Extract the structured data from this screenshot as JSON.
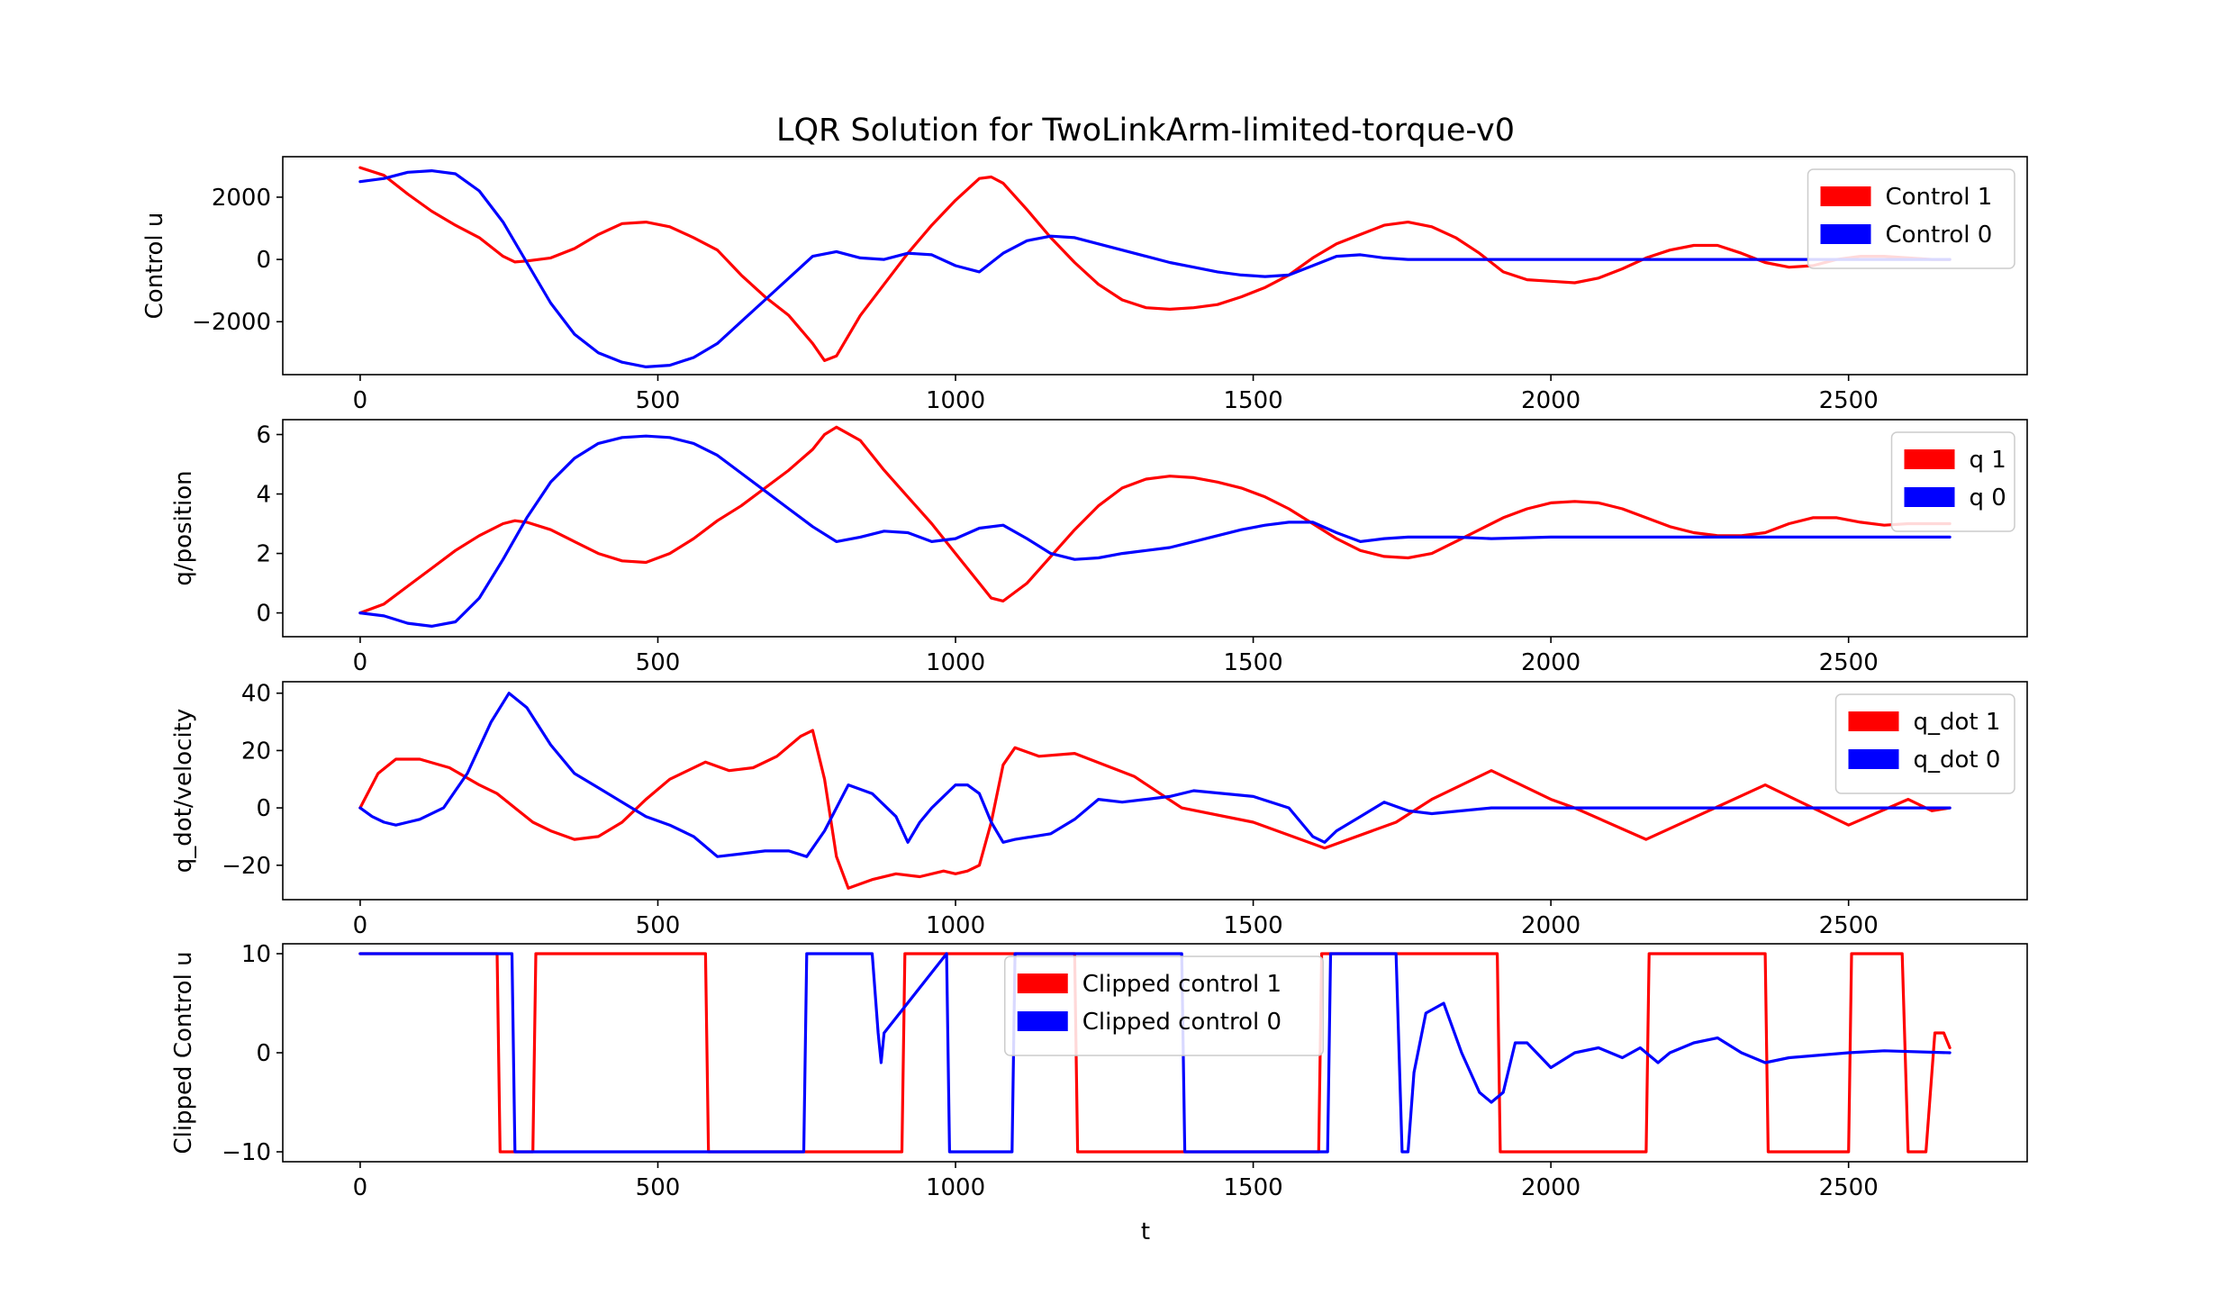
{
  "figure": {
    "title": "LQR Solution for TwoLinkArm-limited-torque-v0",
    "xlabel": "t"
  },
  "colors": {
    "series_1": "#ff0000",
    "series_0": "#0000ff"
  },
  "chart_data": [
    {
      "type": "line",
      "title": "LQR Solution for TwoLinkArm-limited-torque-v0",
      "ylabel": "Control u",
      "xlabel": "",
      "xlim": [
        -130,
        2800
      ],
      "ylim": [
        -3700,
        3300
      ],
      "xticks": [
        0,
        500,
        1000,
        1500,
        2000,
        2500
      ],
      "xtick_labels": [
        "0",
        "500",
        "1000",
        "1500",
        "2000",
        "2500"
      ],
      "yticks": [
        -2000,
        0,
        2000
      ],
      "ytick_labels": [
        "−2000",
        "0",
        "2000"
      ],
      "legend_position": "upper right",
      "series": [
        {
          "name": "Control 1",
          "color": "#ff0000",
          "x": [
            0,
            40,
            80,
            120,
            160,
            200,
            240,
            260,
            280,
            320,
            360,
            400,
            440,
            480,
            520,
            560,
            600,
            640,
            680,
            720,
            760,
            780,
            800,
            840,
            880,
            920,
            960,
            1000,
            1040,
            1060,
            1080,
            1120,
            1160,
            1200,
            1240,
            1280,
            1320,
            1360,
            1400,
            1440,
            1480,
            1520,
            1560,
            1600,
            1640,
            1680,
            1720,
            1760,
            1800,
            1840,
            1880,
            1920,
            1960,
            2000,
            2040,
            2080,
            2120,
            2160,
            2200,
            2240,
            2280,
            2320,
            2360,
            2400,
            2440,
            2480,
            2520,
            2560,
            2600,
            2640,
            2670
          ],
          "y": [
            2950,
            2700,
            2100,
            1550,
            1100,
            700,
            100,
            -80,
            -50,
            50,
            350,
            800,
            1150,
            1200,
            1050,
            700,
            300,
            -500,
            -1200,
            -1800,
            -2700,
            -3250,
            -3100,
            -1800,
            -800,
            200,
            1100,
            1900,
            2600,
            2650,
            2450,
            1600,
            700,
            -100,
            -800,
            -1300,
            -1550,
            -1600,
            -1550,
            -1450,
            -1200,
            -900,
            -500,
            50,
            500,
            800,
            1100,
            1200,
            1050,
            700,
            200,
            -400,
            -650,
            -700,
            -750,
            -600,
            -300,
            50,
            300,
            450,
            450,
            200,
            -100,
            -250,
            -200,
            0,
            100,
            100,
            50,
            0,
            0
          ]
        },
        {
          "name": "Control 0",
          "color": "#0000ff",
          "x": [
            0,
            40,
            80,
            120,
            160,
            200,
            240,
            280,
            320,
            360,
            400,
            440,
            480,
            520,
            560,
            600,
            640,
            680,
            720,
            760,
            800,
            840,
            880,
            920,
            960,
            1000,
            1040,
            1080,
            1120,
            1160,
            1200,
            1240,
            1280,
            1320,
            1360,
            1400,
            1440,
            1480,
            1520,
            1560,
            1600,
            1640,
            1680,
            1720,
            1760,
            1800,
            1900,
            2000,
            2200,
            2400,
            2670
          ],
          "y": [
            2500,
            2600,
            2800,
            2850,
            2750,
            2200,
            1200,
            -100,
            -1400,
            -2400,
            -3000,
            -3300,
            -3450,
            -3400,
            -3150,
            -2700,
            -2000,
            -1300,
            -600,
            100,
            250,
            50,
            0,
            200,
            150,
            -200,
            -400,
            200,
            600,
            750,
            700,
            500,
            300,
            100,
            -100,
            -250,
            -400,
            -500,
            -550,
            -500,
            -200,
            100,
            150,
            50,
            0,
            0,
            0,
            0,
            0,
            0,
            0
          ]
        }
      ]
    },
    {
      "type": "line",
      "ylabel": "q/position",
      "xlabel": "",
      "xlim": [
        -130,
        2800
      ],
      "ylim": [
        -0.8,
        6.5
      ],
      "xticks": [
        0,
        500,
        1000,
        1500,
        2000,
        2500
      ],
      "xtick_labels": [
        "0",
        "500",
        "1000",
        "1500",
        "2000",
        "2500"
      ],
      "yticks": [
        0,
        2,
        4,
        6
      ],
      "ytick_labels": [
        "0",
        "2",
        "4",
        "6"
      ],
      "legend_position": "upper right",
      "series": [
        {
          "name": "q 1",
          "color": "#ff0000",
          "x": [
            0,
            40,
            80,
            120,
            160,
            200,
            240,
            260,
            280,
            320,
            360,
            400,
            440,
            480,
            520,
            560,
            600,
            640,
            680,
            720,
            760,
            780,
            800,
            840,
            880,
            920,
            960,
            1000,
            1040,
            1060,
            1080,
            1120,
            1160,
            1200,
            1240,
            1280,
            1320,
            1360,
            1400,
            1440,
            1480,
            1520,
            1560,
            1600,
            1640,
            1680,
            1720,
            1760,
            1800,
            1840,
            1880,
            1920,
            1960,
            2000,
            2040,
            2080,
            2120,
            2160,
            2200,
            2240,
            2280,
            2320,
            2360,
            2400,
            2440,
            2480,
            2520,
            2560,
            2600,
            2640,
            2670
          ],
          "y": [
            0,
            0.3,
            0.9,
            1.5,
            2.1,
            2.6,
            3.0,
            3.1,
            3.05,
            2.8,
            2.4,
            2.0,
            1.75,
            1.7,
            2.0,
            2.5,
            3.1,
            3.6,
            4.2,
            4.8,
            5.5,
            6.0,
            6.25,
            5.8,
            4.8,
            3.9,
            3.0,
            2.0,
            1.0,
            0.5,
            0.4,
            1.0,
            1.9,
            2.8,
            3.6,
            4.2,
            4.5,
            4.6,
            4.55,
            4.4,
            4.2,
            3.9,
            3.5,
            3.0,
            2.5,
            2.1,
            1.9,
            1.85,
            2.0,
            2.4,
            2.8,
            3.2,
            3.5,
            3.7,
            3.75,
            3.7,
            3.5,
            3.2,
            2.9,
            2.7,
            2.6,
            2.6,
            2.7,
            3.0,
            3.2,
            3.2,
            3.05,
            2.95,
            3.0,
            3.0,
            3.0
          ]
        },
        {
          "name": "q 0",
          "color": "#0000ff",
          "x": [
            0,
            40,
            80,
            120,
            160,
            200,
            240,
            280,
            320,
            360,
            400,
            440,
            480,
            520,
            560,
            600,
            640,
            680,
            720,
            760,
            800,
            840,
            880,
            920,
            960,
            1000,
            1040,
            1080,
            1120,
            1160,
            1200,
            1240,
            1280,
            1320,
            1360,
            1400,
            1440,
            1480,
            1520,
            1560,
            1600,
            1640,
            1680,
            1720,
            1760,
            1800,
            1840,
            1900,
            2000,
            2200,
            2400,
            2670
          ],
          "y": [
            0,
            -0.1,
            -0.35,
            -0.45,
            -0.3,
            0.5,
            1.8,
            3.2,
            4.4,
            5.2,
            5.7,
            5.9,
            5.95,
            5.9,
            5.7,
            5.3,
            4.7,
            4.1,
            3.5,
            2.9,
            2.4,
            2.55,
            2.75,
            2.7,
            2.4,
            2.5,
            2.85,
            2.95,
            2.5,
            2.0,
            1.8,
            1.85,
            2.0,
            2.1,
            2.2,
            2.4,
            2.6,
            2.8,
            2.95,
            3.05,
            3.05,
            2.7,
            2.4,
            2.5,
            2.55,
            2.55,
            2.55,
            2.5,
            2.55,
            2.55,
            2.55,
            2.55
          ]
        }
      ]
    },
    {
      "type": "line",
      "ylabel": "q_dot/velocity",
      "xlabel": "",
      "xlim": [
        -130,
        2800
      ],
      "ylim": [
        -32,
        44
      ],
      "xticks": [
        0,
        500,
        1000,
        1500,
        2000,
        2500
      ],
      "xtick_labels": [
        "0",
        "500",
        "1000",
        "1500",
        "2000",
        "2500"
      ],
      "yticks": [
        -20,
        0,
        20,
        40
      ],
      "ytick_labels": [
        "−20",
        "0",
        "20",
        "40"
      ],
      "legend_position": "upper right",
      "series": [
        {
          "name": "q_dot 1",
          "color": "#ff0000",
          "x": [
            0,
            30,
            60,
            100,
            150,
            200,
            230,
            260,
            290,
            320,
            360,
            400,
            440,
            480,
            520,
            580,
            620,
            660,
            700,
            740,
            760,
            780,
            800,
            820,
            860,
            900,
            940,
            980,
            1000,
            1020,
            1040,
            1060,
            1080,
            1100,
            1140,
            1200,
            1300,
            1380,
            1500,
            1620,
            1740,
            1800,
            1900,
            2000,
            2040,
            2160,
            2360,
            2500,
            2600,
            2640,
            2670
          ],
          "y": [
            0,
            12,
            17,
            17,
            14,
            8,
            5,
            0,
            -5,
            -8,
            -11,
            -10,
            -5,
            3,
            10,
            16,
            13,
            14,
            18,
            25,
            27,
            10,
            -17,
            -28,
            -25,
            -23,
            -24,
            -22,
            -23,
            -22,
            -20,
            -5,
            15,
            21,
            18,
            19,
            11,
            0,
            -5,
            -14,
            -5,
            3,
            13,
            3,
            0,
            -11,
            8,
            -6,
            3,
            -1,
            0
          ]
        },
        {
          "name": "q_dot 0",
          "color": "#0000ff",
          "x": [
            0,
            20,
            40,
            60,
            80,
            100,
            140,
            180,
            220,
            250,
            280,
            320,
            360,
            400,
            440,
            480,
            520,
            560,
            600,
            640,
            680,
            720,
            750,
            780,
            820,
            860,
            900,
            920,
            940,
            960,
            1000,
            1020,
            1040,
            1060,
            1080,
            1100,
            1160,
            1200,
            1240,
            1280,
            1320,
            1360,
            1400,
            1500,
            1560,
            1600,
            1620,
            1640,
            1680,
            1720,
            1760,
            1800,
            1900,
            2000,
            2200,
            2400,
            2670
          ],
          "y": [
            0,
            -3,
            -5,
            -6,
            -5,
            -4,
            0,
            12,
            30,
            40,
            35,
            22,
            12,
            7,
            2,
            -3,
            -6,
            -10,
            -17,
            -16,
            -15,
            -15,
            -17,
            -8,
            8,
            5,
            -3,
            -12,
            -5,
            0,
            8,
            8,
            5,
            -5,
            -12,
            -11,
            -9,
            -4,
            3,
            2,
            3,
            4,
            6,
            4,
            0,
            -10,
            -12,
            -8,
            -3,
            2,
            -1,
            -2,
            0,
            0,
            0,
            0,
            0
          ]
        }
      ]
    },
    {
      "type": "line",
      "ylabel": "Clipped Control u",
      "xlabel": "t",
      "xlim": [
        -130,
        2800
      ],
      "ylim": [
        -11,
        11
      ],
      "xticks": [
        0,
        500,
        1000,
        1500,
        2000,
        2500
      ],
      "xtick_labels": [
        "0",
        "500",
        "1000",
        "1500",
        "2000",
        "2500"
      ],
      "yticks": [
        -10,
        0,
        10
      ],
      "ytick_labels": [
        "−10",
        "0",
        "10"
      ],
      "legend_position": "upper center",
      "series": [
        {
          "name": "Clipped control 1",
          "color": "#ff0000",
          "x": [
            0,
            230,
            235,
            290,
            295,
            580,
            585,
            910,
            915,
            1200,
            1205,
            1610,
            1615,
            1910,
            1915,
            2160,
            2165,
            2360,
            2365,
            2500,
            2505,
            2590,
            2600,
            2630,
            2645,
            2660,
            2670
          ],
          "y": [
            10,
            10,
            -10,
            -10,
            10,
            10,
            -10,
            -10,
            10,
            10,
            -10,
            -10,
            10,
            10,
            -10,
            -10,
            10,
            10,
            -10,
            -10,
            10,
            10,
            -10,
            -10,
            2,
            2,
            0.5
          ]
        },
        {
          "name": "Clipped control 0",
          "color": "#0000ff",
          "x": [
            0,
            255,
            260,
            745,
            750,
            860,
            870,
            875,
            880,
            985,
            990,
            1095,
            1100,
            1380,
            1385,
            1625,
            1630,
            1740,
            1750,
            1760,
            1770,
            1790,
            1820,
            1850,
            1880,
            1900,
            1920,
            1940,
            1960,
            2000,
            2040,
            2080,
            2120,
            2150,
            2170,
            2180,
            2200,
            2240,
            2280,
            2320,
            2360,
            2400,
            2500,
            2560,
            2670
          ],
          "y": [
            10,
            10,
            -10,
            -10,
            10,
            10,
            2,
            -1,
            2,
            10,
            -10,
            -10,
            10,
            10,
            -10,
            -10,
            10,
            10,
            -10,
            -10,
            -2,
            4,
            5,
            0,
            -4,
            -5,
            -4,
            1,
            1,
            -1.5,
            0,
            0.5,
            -0.5,
            0.5,
            -0.5,
            -1,
            0,
            1,
            1.5,
            0,
            -1,
            -0.5,
            0,
            0.2,
            0
          ]
        }
      ]
    }
  ]
}
